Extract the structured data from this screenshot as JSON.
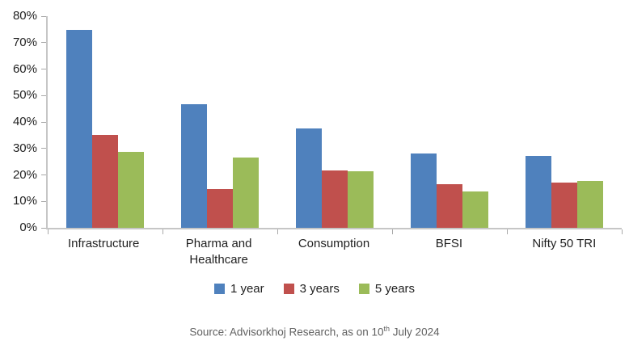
{
  "chart_data": {
    "type": "bar",
    "title": "",
    "categories": [
      "Infrastructure",
      "Pharma and Healthcare",
      "Consumption",
      "BFSI",
      "Nifty 50 TRI"
    ],
    "series": [
      {
        "name": "1 year",
        "color": "#4F81BD",
        "values": [
          74.8,
          46.7,
          37.6,
          28.0,
          27.1
        ]
      },
      {
        "name": "3 years",
        "color": "#C0504D",
        "values": [
          35.2,
          14.7,
          21.8,
          16.6,
          17.1
        ]
      },
      {
        "name": "5 years",
        "color": "#9BBB59",
        "values": [
          28.7,
          26.7,
          21.3,
          13.8,
          17.6
        ]
      }
    ],
    "ylim": [
      0,
      80
    ],
    "yticks": [
      0,
      10,
      20,
      30,
      40,
      50,
      60,
      70,
      80
    ],
    "ytick_labels": [
      "0%",
      "10%",
      "20%",
      "30%",
      "40%",
      "50%",
      "60%",
      "70%",
      "80%"
    ],
    "grid": false,
    "legend_position": "bottom"
  },
  "source": {
    "prefix": "Source: Advisorkhoj Research, as on 10",
    "sup": "th",
    "suffix": " July 2024"
  }
}
